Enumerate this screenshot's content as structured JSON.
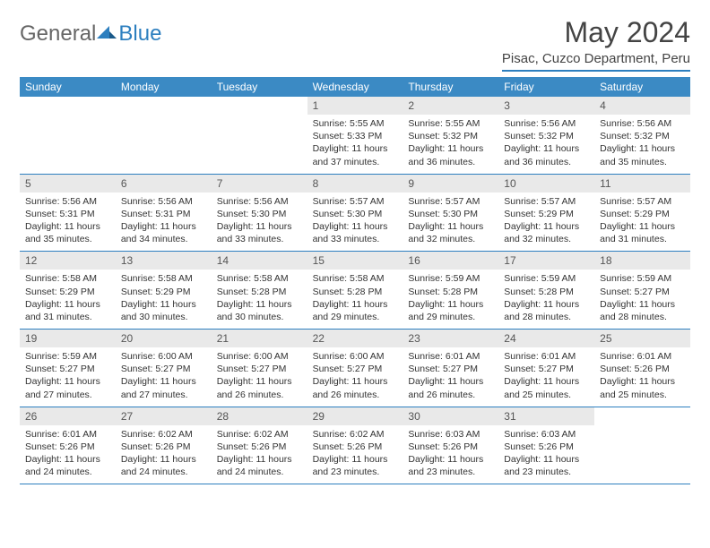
{
  "brand": {
    "part1": "General",
    "part2": "Blue"
  },
  "title": "May 2024",
  "location": "Pisac, Cuzco Department, Peru",
  "colors": {
    "header_bg": "#3b8ac4",
    "accent": "#2d7fbf",
    "daynum_bg": "#e9e9e9",
    "text": "#333333"
  },
  "day_names": [
    "Sunday",
    "Monday",
    "Tuesday",
    "Wednesday",
    "Thursday",
    "Friday",
    "Saturday"
  ],
  "weeks": [
    [
      null,
      null,
      null,
      {
        "n": "1",
        "sr": "5:55 AM",
        "ss": "5:33 PM",
        "dl": "11 hours and 37 minutes."
      },
      {
        "n": "2",
        "sr": "5:55 AM",
        "ss": "5:32 PM",
        "dl": "11 hours and 36 minutes."
      },
      {
        "n": "3",
        "sr": "5:56 AM",
        "ss": "5:32 PM",
        "dl": "11 hours and 36 minutes."
      },
      {
        "n": "4",
        "sr": "5:56 AM",
        "ss": "5:32 PM",
        "dl": "11 hours and 35 minutes."
      }
    ],
    [
      {
        "n": "5",
        "sr": "5:56 AM",
        "ss": "5:31 PM",
        "dl": "11 hours and 35 minutes."
      },
      {
        "n": "6",
        "sr": "5:56 AM",
        "ss": "5:31 PM",
        "dl": "11 hours and 34 minutes."
      },
      {
        "n": "7",
        "sr": "5:56 AM",
        "ss": "5:30 PM",
        "dl": "11 hours and 33 minutes."
      },
      {
        "n": "8",
        "sr": "5:57 AM",
        "ss": "5:30 PM",
        "dl": "11 hours and 33 minutes."
      },
      {
        "n": "9",
        "sr": "5:57 AM",
        "ss": "5:30 PM",
        "dl": "11 hours and 32 minutes."
      },
      {
        "n": "10",
        "sr": "5:57 AM",
        "ss": "5:29 PM",
        "dl": "11 hours and 32 minutes."
      },
      {
        "n": "11",
        "sr": "5:57 AM",
        "ss": "5:29 PM",
        "dl": "11 hours and 31 minutes."
      }
    ],
    [
      {
        "n": "12",
        "sr": "5:58 AM",
        "ss": "5:29 PM",
        "dl": "11 hours and 31 minutes."
      },
      {
        "n": "13",
        "sr": "5:58 AM",
        "ss": "5:29 PM",
        "dl": "11 hours and 30 minutes."
      },
      {
        "n": "14",
        "sr": "5:58 AM",
        "ss": "5:28 PM",
        "dl": "11 hours and 30 minutes."
      },
      {
        "n": "15",
        "sr": "5:58 AM",
        "ss": "5:28 PM",
        "dl": "11 hours and 29 minutes."
      },
      {
        "n": "16",
        "sr": "5:59 AM",
        "ss": "5:28 PM",
        "dl": "11 hours and 29 minutes."
      },
      {
        "n": "17",
        "sr": "5:59 AM",
        "ss": "5:28 PM",
        "dl": "11 hours and 28 minutes."
      },
      {
        "n": "18",
        "sr": "5:59 AM",
        "ss": "5:27 PM",
        "dl": "11 hours and 28 minutes."
      }
    ],
    [
      {
        "n": "19",
        "sr": "5:59 AM",
        "ss": "5:27 PM",
        "dl": "11 hours and 27 minutes."
      },
      {
        "n": "20",
        "sr": "6:00 AM",
        "ss": "5:27 PM",
        "dl": "11 hours and 27 minutes."
      },
      {
        "n": "21",
        "sr": "6:00 AM",
        "ss": "5:27 PM",
        "dl": "11 hours and 26 minutes."
      },
      {
        "n": "22",
        "sr": "6:00 AM",
        "ss": "5:27 PM",
        "dl": "11 hours and 26 minutes."
      },
      {
        "n": "23",
        "sr": "6:01 AM",
        "ss": "5:27 PM",
        "dl": "11 hours and 26 minutes."
      },
      {
        "n": "24",
        "sr": "6:01 AM",
        "ss": "5:27 PM",
        "dl": "11 hours and 25 minutes."
      },
      {
        "n": "25",
        "sr": "6:01 AM",
        "ss": "5:26 PM",
        "dl": "11 hours and 25 minutes."
      }
    ],
    [
      {
        "n": "26",
        "sr": "6:01 AM",
        "ss": "5:26 PM",
        "dl": "11 hours and 24 minutes."
      },
      {
        "n": "27",
        "sr": "6:02 AM",
        "ss": "5:26 PM",
        "dl": "11 hours and 24 minutes."
      },
      {
        "n": "28",
        "sr": "6:02 AM",
        "ss": "5:26 PM",
        "dl": "11 hours and 24 minutes."
      },
      {
        "n": "29",
        "sr": "6:02 AM",
        "ss": "5:26 PM",
        "dl": "11 hours and 23 minutes."
      },
      {
        "n": "30",
        "sr": "6:03 AM",
        "ss": "5:26 PM",
        "dl": "11 hours and 23 minutes."
      },
      {
        "n": "31",
        "sr": "6:03 AM",
        "ss": "5:26 PM",
        "dl": "11 hours and 23 minutes."
      },
      null
    ]
  ],
  "labels": {
    "sunrise": "Sunrise:",
    "sunset": "Sunset:",
    "daylight": "Daylight:"
  }
}
